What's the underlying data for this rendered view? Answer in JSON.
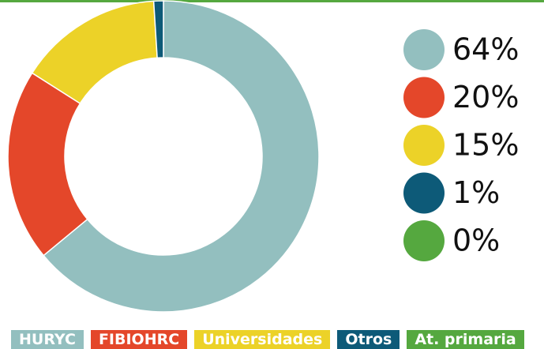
{
  "chart_data": {
    "type": "donut",
    "categories": [
      "HURYC",
      "FIBIOHRC",
      "Universidades",
      "Otros",
      "At. primaria"
    ],
    "values": [
      64,
      20,
      15,
      1,
      0
    ],
    "value_labels": [
      "64%",
      "20%",
      "15%",
      "1%",
      "0%"
    ],
    "colors": [
      "#93bfbf",
      "#e4472a",
      "#ecd228",
      "#0d5a78",
      "#55a83f"
    ]
  }
}
